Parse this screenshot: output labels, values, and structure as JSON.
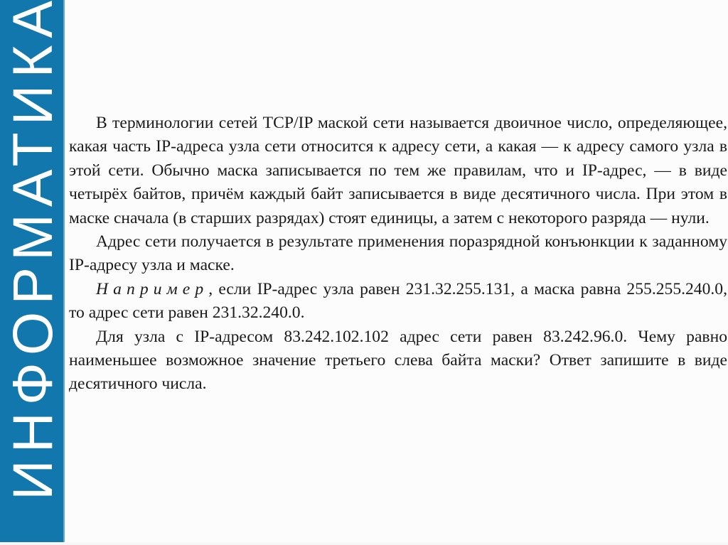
{
  "banner": {
    "title": "ИНФОРМАТИКА"
  },
  "colors": {
    "banner_background": "#1277AD",
    "banner_edge": "#66ABCD",
    "banner_text": "#FFFFFF",
    "body_text": "#1A1A1A",
    "page_background": "#FCFCFC"
  },
  "document": {
    "paragraphs": [
      {
        "text": "В терминологии сетей TCP/IP маской сети называется двоичное число, определяющее, какая часть IP-адреса узла сети относится к адресу сети, а какая — к адресу самого узла в этой сети. Обычно маска записывается по тем же правилам, что и IP-адрес, — в виде четырёх байтов, причём каждый байт записывается в виде десятичного числа. При этом в маске сначала (в старших разрядах) стоят единицы, а затем с некоторого разряда — нули."
      },
      {
        "text": "Адрес сети получается в результате применения поразрядной конъюнкции к заданному IP-адресу узла и маске."
      },
      {
        "lead": "Например",
        "rest": ", если IP-адрес узла равен 231.32.255.131, а маска равна 255.255.240.0, то адрес сети равен 231.32.240.0."
      },
      {
        "text": "Для узла с IP-адресом 83.242.102.102 адрес сети равен 83.242.96.0. Чему равно наименьшее возможное значение третьего слева байта маски? Ответ запишите в виде десятичного числа."
      }
    ]
  }
}
